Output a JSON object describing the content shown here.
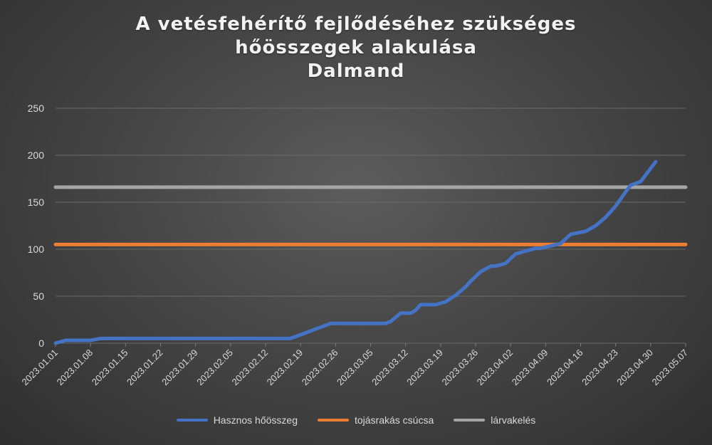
{
  "chart_data": {
    "type": "line",
    "title_lines": [
      "A vetésfehérítő fejlődéséhez szükséges",
      "hőösszegek alakulása",
      "Dalmand"
    ],
    "xlabel": "",
    "ylabel": "",
    "ylim": [
      0,
      250
    ],
    "yticks": [
      0,
      50,
      100,
      150,
      200,
      250
    ],
    "x_tick_labels": [
      "2023.01.01",
      "2023.01.08",
      "2023.01.15",
      "2023.01.22",
      "2023.01.29",
      "2023.02.05",
      "2023.02.12",
      "2023.02.19",
      "2023.02.26",
      "2023.03.05",
      "2023.03.12",
      "2023.03.19",
      "2023.03.26",
      "2023.04.02",
      "2023.04.09",
      "2023.04.16",
      "2023.04.23",
      "2023.04.30",
      "2023.05.07"
    ],
    "grid": true,
    "legend_position": "bottom",
    "series": [
      {
        "name": "Hasznos hőösszeg",
        "color": "#4472c4",
        "x": [
          "2023.01.01",
          "2023.01.03",
          "2023.01.08",
          "2023.01.10",
          "2023.02.17",
          "2023.02.19",
          "2023.02.20",
          "2023.02.22",
          "2023.02.23",
          "2023.02.25",
          "2023.03.08",
          "2023.03.09",
          "2023.03.11",
          "2023.03.13",
          "2023.03.14",
          "2023.03.15",
          "2023.03.18",
          "2023.03.20",
          "2023.03.22",
          "2023.03.24",
          "2023.03.25",
          "2023.03.27",
          "2023.03.29",
          "2023.03.30",
          "2023.04.01",
          "2023.04.03",
          "2023.04.07",
          "2023.04.08",
          "2023.04.12",
          "2023.04.14",
          "2023.04.17",
          "2023.04.19",
          "2023.04.21",
          "2023.04.23",
          "2023.04.25",
          "2023.04.26",
          "2023.04.28",
          "2023.05.01"
        ],
        "values": [
          0,
          3,
          3,
          5,
          5,
          9,
          11,
          15,
          17,
          21,
          21,
          23,
          32,
          32,
          35,
          41,
          41,
          44,
          51,
          60,
          66,
          76,
          82,
          82,
          85,
          95,
          101,
          101,
          106,
          116,
          119,
          125,
          134,
          146,
          161,
          168,
          172,
          193
        ]
      },
      {
        "name": "tojásrakás csúcsa",
        "color": "#ed7d31",
        "x": [
          "2023.01.01",
          "2023.05.07"
        ],
        "values": [
          105,
          105
        ]
      },
      {
        "name": "lárvakelés",
        "color": "#a5a5a5",
        "x": [
          "2023.01.01",
          "2023.05.07"
        ],
        "values": [
          166,
          166
        ]
      }
    ]
  }
}
